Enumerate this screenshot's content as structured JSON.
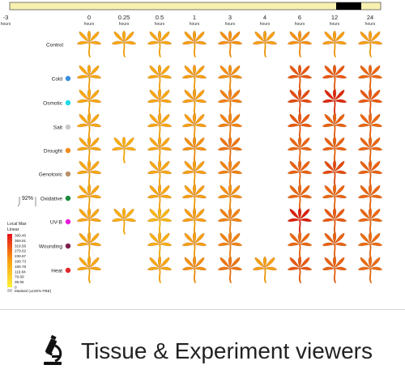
{
  "timebar": {
    "light_color": "#f8f0b0",
    "dark_color": "#000000",
    "dark_start_hours": 12
  },
  "time_points": [
    {
      "value": "-3",
      "unit": "hours"
    },
    {
      "value": "0",
      "unit": "hours"
    },
    {
      "value": "0.25",
      "unit": "hours"
    },
    {
      "value": "0.5",
      "unit": "hours"
    },
    {
      "value": "1",
      "unit": "hours"
    },
    {
      "value": "3",
      "unit": "hours"
    },
    {
      "value": "4",
      "unit": "hours"
    },
    {
      "value": "6",
      "unit": "hours"
    },
    {
      "value": "12",
      "unit": "hours"
    },
    {
      "value": "24",
      "unit": "hours"
    }
  ],
  "rows": [
    {
      "label": "Control",
      "dot_color": null,
      "cells": [
        null,
        0.45,
        0.45,
        0.45,
        0.5,
        0.55,
        0.5,
        0.55,
        0.5,
        0.5
      ]
    },
    {
      "label": "Cold",
      "dot_color": "#3b8fe0",
      "cells": [
        null,
        0.45,
        null,
        0.45,
        0.5,
        0.55,
        null,
        0.75,
        0.75,
        0.7
      ]
    },
    {
      "label": "Osmotic",
      "dot_color": "#22d8e8",
      "cells": [
        null,
        0.45,
        null,
        0.45,
        0.5,
        0.6,
        null,
        0.8,
        0.92,
        0.75
      ]
    },
    {
      "label": "Salt",
      "dot_color": "#c8c8c8",
      "cells": [
        null,
        0.45,
        null,
        0.45,
        0.5,
        0.6,
        null,
        0.75,
        0.72,
        0.7
      ]
    },
    {
      "label": "Drought",
      "dot_color": "#f08a1c",
      "cells": [
        null,
        0.45,
        0.4,
        0.45,
        0.55,
        0.65,
        null,
        0.7,
        0.72,
        0.7
      ]
    },
    {
      "label": "Genotoxic",
      "dot_color": "#b8906a",
      "cells": [
        null,
        0.45,
        null,
        0.45,
        0.5,
        0.6,
        null,
        0.72,
        0.8,
        0.72
      ]
    },
    {
      "label": "Oxidative",
      "dot_color": "#1a8a3a",
      "cells": [
        null,
        0.45,
        null,
        0.45,
        0.5,
        0.55,
        null,
        0.7,
        0.7,
        0.7
      ]
    },
    {
      "label": "UV-B",
      "dot_color": "#e81cd8",
      "cells": [
        null,
        0.45,
        0.4,
        0.35,
        0.5,
        0.6,
        null,
        0.95,
        0.75,
        0.7
      ]
    },
    {
      "label": "Wounding",
      "dot_color": "#7a1e4a",
      "cells": [
        null,
        0.45,
        null,
        0.4,
        0.5,
        0.6,
        null,
        0.7,
        0.72,
        0.68
      ]
    },
    {
      "label": "Heat",
      "dot_color": "#e0282c",
      "cells": [
        null,
        0.45,
        null,
        0.45,
        0.55,
        0.65,
        0.5,
        0.75,
        0.72,
        0.68
      ]
    }
  ],
  "legend": {
    "title_line1": "Local Max",
    "title_line2": "Linear",
    "ticks": [
      "399.45",
      "359.51",
      "319.56",
      "279.62",
      "239.67",
      "199.73",
      "159.78",
      "119.84",
      "79.89",
      "39.95",
      "0"
    ],
    "gradient_top": "#e8101a",
    "gradient_mid": "#f7a010",
    "gradient_bottom": "#fff23a",
    "masked_color": "#c8c8c8",
    "masked_label": "Masked (±100% PBE)"
  },
  "percent_label": "92%",
  "footer": {
    "label": "Tissue & Experiment viewers",
    "icon": "microscope-icon"
  }
}
